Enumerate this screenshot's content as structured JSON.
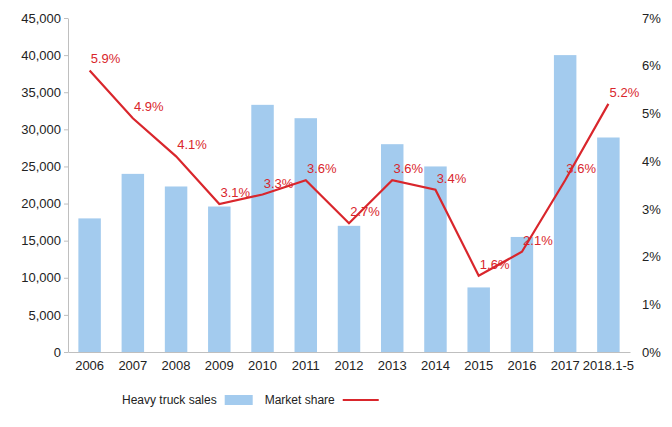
{
  "chart_data": {
    "type": "bar",
    "categories": [
      "2006",
      "2007",
      "2008",
      "2009",
      "2010",
      "2011",
      "2012",
      "2013",
      "2014",
      "2015",
      "2016",
      "2017",
      "2018.1-5"
    ],
    "series": [
      {
        "name": "Heavy truck sales",
        "type": "bar",
        "color": "#a3cbee",
        "values": [
          18000,
          24000,
          22300,
          19600,
          33300,
          31500,
          17000,
          28000,
          25000,
          8700,
          15500,
          40000,
          28900
        ]
      },
      {
        "name": "Market share",
        "type": "line",
        "axis": "y2",
        "color": "#d9262c",
        "data_labels": true,
        "values": [
          5.9,
          4.9,
          4.1,
          3.1,
          3.3,
          3.6,
          2.7,
          3.6,
          3.4,
          1.6,
          2.1,
          3.6,
          5.2
        ],
        "value_labels": [
          "5.9%",
          "4.9%",
          "4.1%",
          "3.1%",
          "3.3%",
          "3.6%",
          "2.7%",
          "3.6%",
          "3.4%",
          "1.6%",
          "2.1%",
          "3.6%",
          "5.2%"
        ]
      }
    ],
    "ylim": [
      0,
      45000
    ],
    "yticks": [
      0,
      {
        "value": 5000,
        "label": "5,000"
      },
      {
        "value": 10000,
        "label": "10,000"
      },
      {
        "value": 15000,
        "label": "15,000"
      },
      {
        "value": 20000,
        "label": "20,000"
      },
      {
        "value": 25000,
        "label": "25,000"
      },
      {
        "value": 30000,
        "label": "30,000"
      },
      {
        "value": 35000,
        "label": "35,000"
      },
      {
        "value": 40000,
        "label": "40,000"
      },
      {
        "value": 45000,
        "label": "45,000"
      }
    ],
    "y2lim": [
      0,
      7
    ],
    "y2ticks": [
      {
        "value": 0,
        "label": "0%"
      },
      {
        "value": 1,
        "label": "1%"
      },
      {
        "value": 2,
        "label": "2%"
      },
      {
        "value": 3,
        "label": "3%"
      },
      {
        "value": 4,
        "label": "4%"
      },
      {
        "value": 5,
        "label": "5%"
      },
      {
        "value": 6,
        "label": "6%"
      },
      {
        "value": 7,
        "label": "7%"
      }
    ],
    "grid": false,
    "legend": "bottom"
  }
}
